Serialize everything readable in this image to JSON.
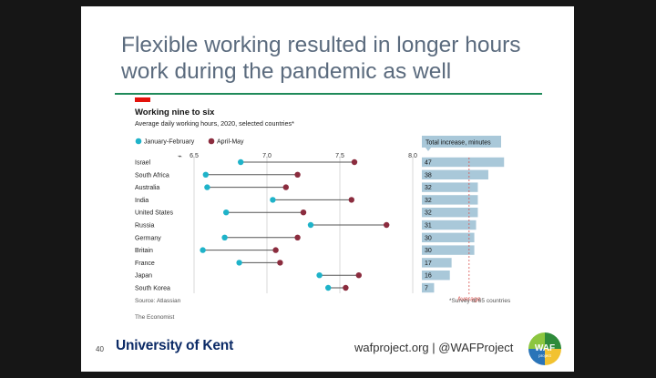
{
  "slide": {
    "title": "Flexible working resulted in longer hours work during the pandemic as well",
    "slide_number": "40",
    "university": "University of Kent",
    "footer_text": "wafproject.org | @WAFProject",
    "logo_text": "WAF",
    "logo_subtext": "project"
  },
  "colors": {
    "accent_red": "#e3120b",
    "jan_feb": "#1fb3c9",
    "apr_may": "#8b2c3e",
    "bar": "#a9c8d9",
    "rule": "#1f8a5a",
    "average_line": "#d9534f"
  },
  "chart_data": {
    "type": "dumbbell",
    "title": "Working nine to six",
    "subtitle": "Average daily working hours, 2020, selected countries*",
    "xlim": [
      6.5,
      8.0
    ],
    "ticks": [
      "6.5",
      "7.0",
      "7.5",
      "8.0"
    ],
    "tick_values": [
      6.5,
      7.0,
      7.5,
      8.0
    ],
    "legend": [
      "January-February",
      "April-May"
    ],
    "categories": [
      "Israel",
      "South Africa",
      "Australia",
      "India",
      "United States",
      "Russia",
      "Germany",
      "Britain",
      "France",
      "Japan",
      "South Korea"
    ],
    "series": [
      {
        "name": "January-February",
        "values": [
          6.82,
          6.58,
          6.59,
          7.04,
          6.72,
          7.3,
          6.71,
          6.56,
          6.81,
          7.36,
          7.42
        ]
      },
      {
        "name": "April-May",
        "values": [
          7.6,
          7.21,
          7.13,
          7.58,
          7.25,
          7.82,
          7.21,
          7.06,
          7.09,
          7.63,
          7.54
        ]
      }
    ],
    "bar_chart": {
      "title": "Total increase, minutes",
      "values": [
        47,
        38,
        32,
        32,
        32,
        31,
        30,
        30,
        17,
        16,
        7
      ],
      "xlim": [
        0,
        50
      ],
      "average": 27,
      "average_label": "Average",
      "note": "*Survey of 65 countries"
    },
    "source": "Source: Atlassian",
    "credit": "The Economist"
  }
}
